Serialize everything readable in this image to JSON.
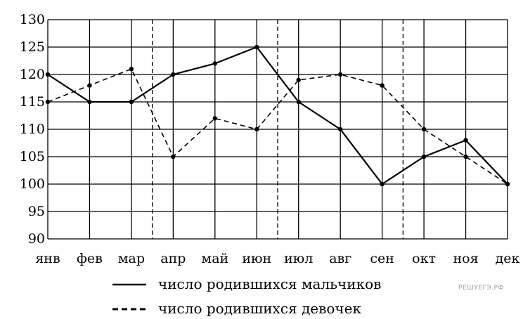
{
  "chart_data": {
    "type": "line",
    "categories": [
      "янв",
      "фев",
      "мар",
      "апр",
      "май",
      "июн",
      "июл",
      "авг",
      "сен",
      "окт",
      "ноя",
      "дек"
    ],
    "series": [
      {
        "name": "число родившихся мальчиков",
        "style": "solid",
        "values": [
          120,
          115,
          115,
          120,
          122,
          125,
          115,
          110,
          100,
          105,
          108,
          100
        ]
      },
      {
        "name": "число родившихся девочек",
        "style": "dashed",
        "values": [
          115,
          118,
          121,
          105,
          112,
          110,
          119,
          120,
          118,
          110,
          105,
          100
        ]
      }
    ],
    "ylim": [
      90,
      130
    ],
    "yticks": [
      90,
      95,
      100,
      105,
      110,
      115,
      120,
      125,
      130
    ],
    "grid": true,
    "quarter_dividers_after": [
      "мар",
      "июн",
      "сен"
    ],
    "legend_position": "bottom",
    "colors": {
      "line": "#000000",
      "grid": "#000000",
      "background": "#ffffff"
    }
  },
  "watermark": "РЕШУЕГЭ.РФ"
}
